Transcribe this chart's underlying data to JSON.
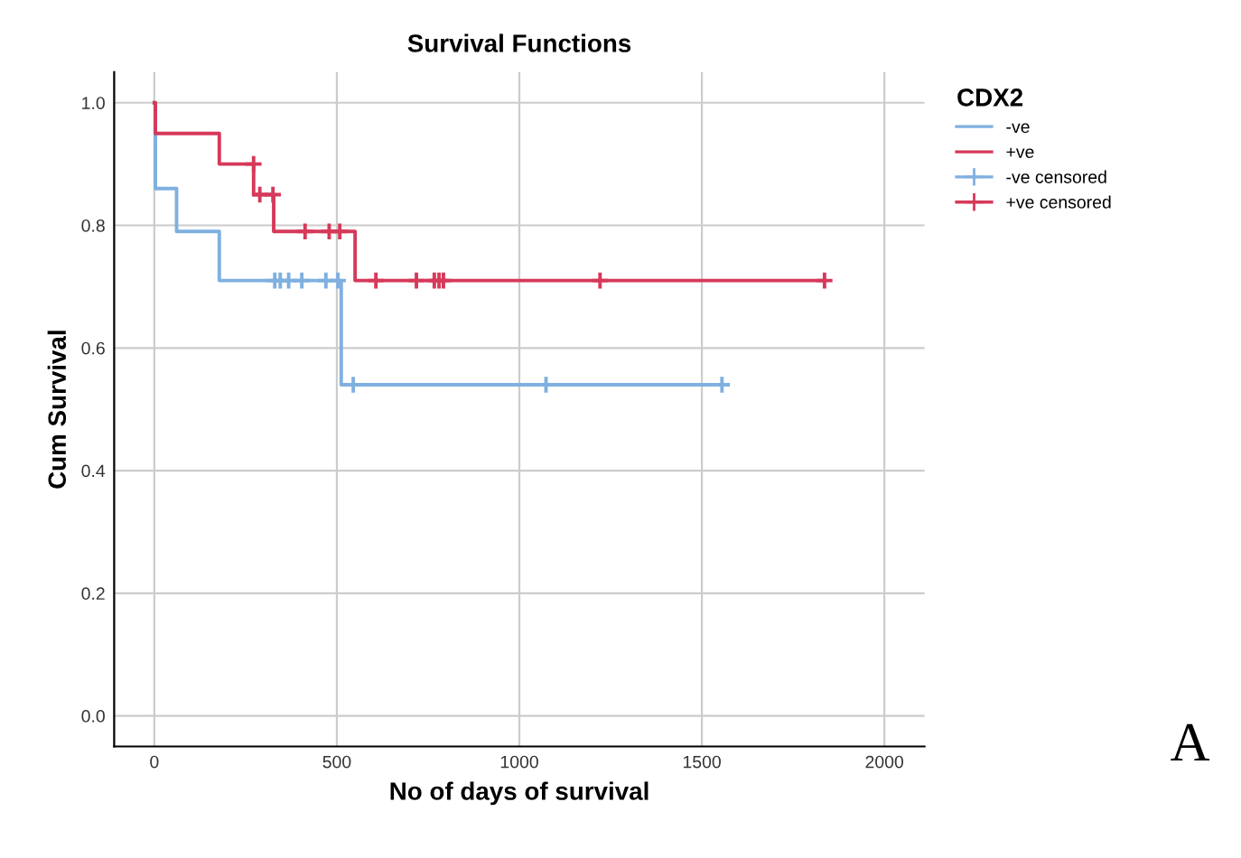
{
  "chart_data": {
    "type": "step",
    "title": "Survival Functions",
    "xlabel": "No of days of survival",
    "ylabel": "Cum Survival",
    "legend_title": "CDX2",
    "series": [
      {
        "name": "-ve",
        "color": "#7fb0e0",
        "x": [
          0,
          3,
          61,
          178,
          512,
          1555
        ],
        "values": [
          1.0,
          0.86,
          0.79,
          0.71,
          0.54,
          0.54
        ]
      },
      {
        "name": "+ve",
        "color": "#d6395a",
        "x": [
          0,
          3,
          178,
          272,
          327,
          550,
          1836
        ],
        "values": [
          1.0,
          0.95,
          0.9,
          0.85,
          0.79,
          0.71,
          0.71
        ]
      },
      {
        "name": "-ve censored",
        "color": "#7fb0e0",
        "type": "scatter",
        "marker": "cross",
        "x": [
          330,
          345,
          368,
          404,
          470,
          503,
          545,
          1073,
          1555
        ],
        "values": [
          0.71,
          0.71,
          0.71,
          0.71,
          0.71,
          0.71,
          0.54,
          0.54,
          0.54
        ]
      },
      {
        "name": "+ve censored",
        "color": "#d6395a",
        "type": "scatter",
        "marker": "cross",
        "x": [
          272,
          289,
          325,
          413,
          479,
          508,
          607,
          718,
          767,
          780,
          792,
          1221,
          1836
        ],
        "values": [
          0.9,
          0.85,
          0.85,
          0.79,
          0.79,
          0.79,
          0.71,
          0.71,
          0.71,
          0.71,
          0.71,
          0.71,
          0.71
        ]
      }
    ],
    "xlim": [
      -110,
      2110
    ],
    "ylim": [
      -0.05,
      1.05
    ],
    "xticks": [
      0,
      500,
      1000,
      1500,
      2000
    ],
    "yticks": [
      {
        "value": 0,
        "label": "0.0"
      },
      {
        "value": 0.2,
        "label": "0.2"
      },
      {
        "value": 0.4,
        "label": "0.4"
      },
      {
        "value": 0.6,
        "label": "0.6"
      },
      {
        "value": 0.8,
        "label": "0.8"
      },
      {
        "value": 1.0,
        "label": "1.0"
      }
    ],
    "grid": true,
    "legend": "top right",
    "annotations": [
      "A"
    ]
  }
}
